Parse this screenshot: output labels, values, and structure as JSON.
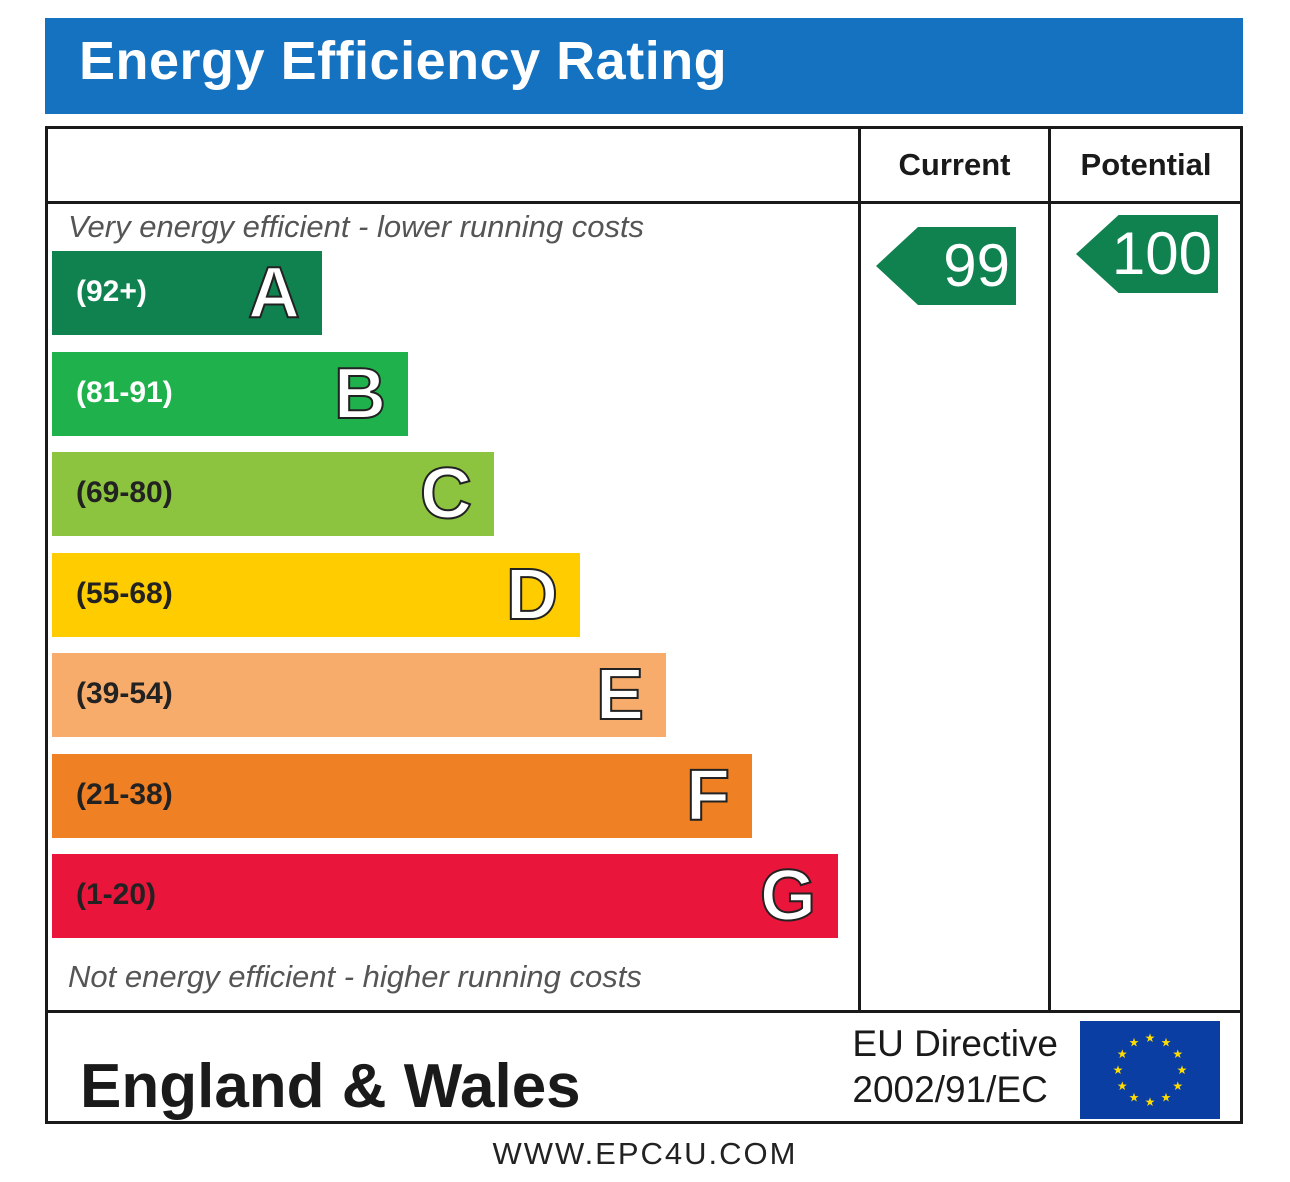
{
  "title": "Energy Efficiency Rating",
  "columns": {
    "current": "Current",
    "potential": "Potential"
  },
  "captions": {
    "top": "Very energy efficient - lower running costs",
    "bottom": "Not energy efficient - higher running costs"
  },
  "footer": {
    "region": "England & Wales",
    "directive_line1": "EU Directive",
    "directive_line2": "2002/91/EC",
    "website": "WWW.EPC4U.COM"
  },
  "colors": {
    "header": "#1472c0",
    "A": "#108250",
    "B": "#1fb14b",
    "C": "#8cc43f",
    "D": "#ffcc00",
    "E": "#f7ac6b",
    "F": "#ef8023",
    "G": "#e9153b",
    "current_arrow": "#108250",
    "potential_arrow": "#108250",
    "eu_flag": "#0a3ea3",
    "eu_stars": "#ffdd00"
  },
  "chart_data": {
    "type": "bar",
    "categories": [
      "A",
      "B",
      "C",
      "D",
      "E",
      "F",
      "G"
    ],
    "bands": [
      {
        "letter": "A",
        "range": "(92+)"
      },
      {
        "letter": "B",
        "range": "(81-91)"
      },
      {
        "letter": "C",
        "range": "(69-80)"
      },
      {
        "letter": "D",
        "range": "(55-68)"
      },
      {
        "letter": "E",
        "range": "(39-54)"
      },
      {
        "letter": "F",
        "range": "(21-38)"
      },
      {
        "letter": "G",
        "range": "(1-20)"
      }
    ],
    "current": {
      "value": 99,
      "band": "A"
    },
    "potential": {
      "value": 100,
      "band": "A"
    }
  }
}
